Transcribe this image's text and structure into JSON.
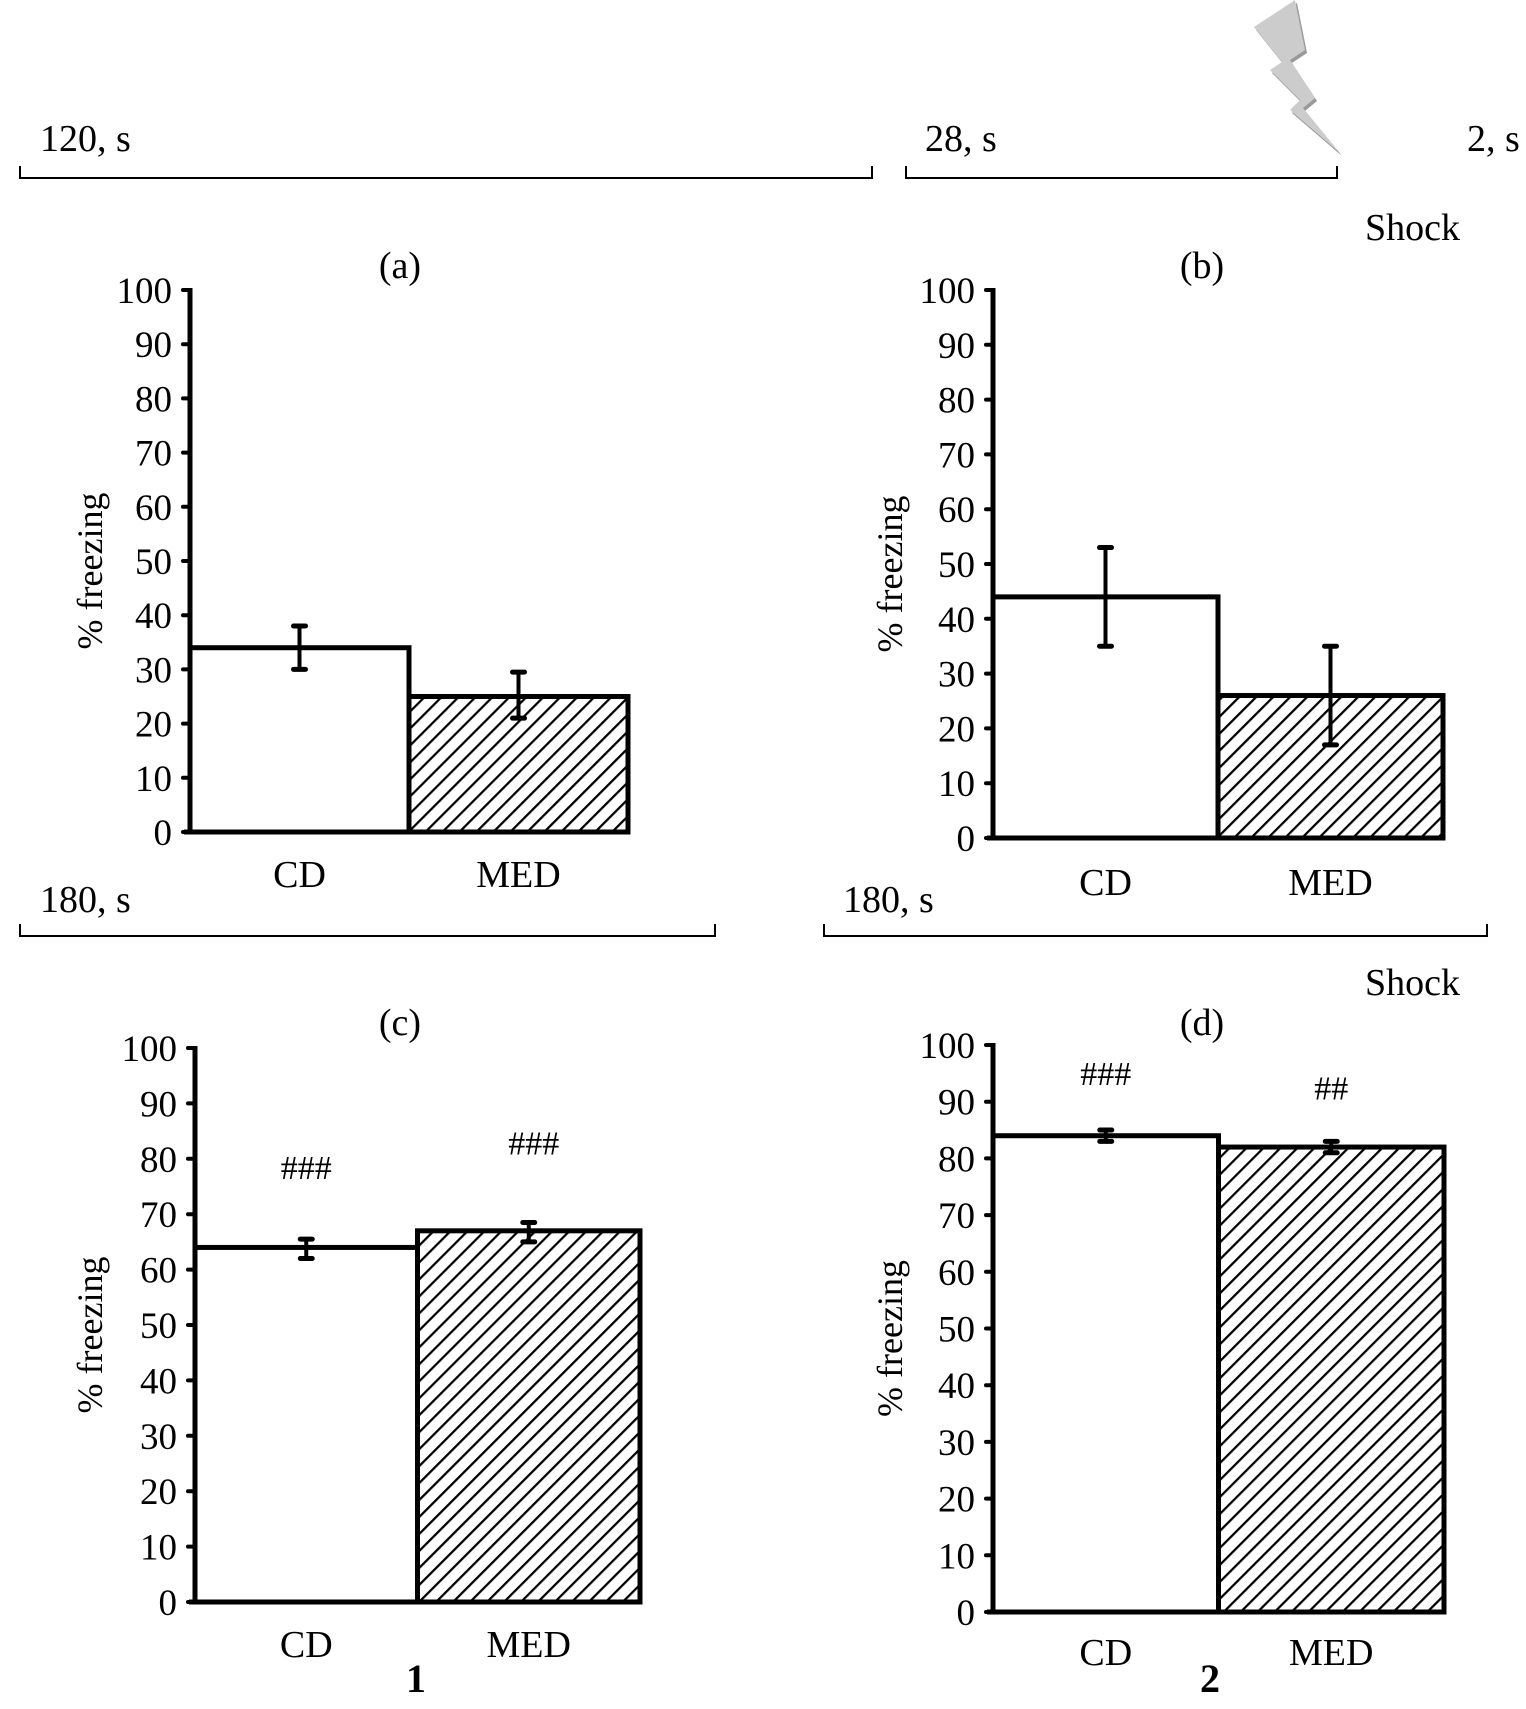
{
  "figure": {
    "timelines": [
      {
        "segments": [
          {
            "label": "120, s"
          },
          {
            "label": "28, s"
          },
          {
            "label": "2, s",
            "marker": "shock"
          }
        ],
        "shock_label": "Shock"
      },
      {
        "segments": [
          {
            "label": "180, s"
          }
        ]
      },
      {
        "segments": [
          {
            "label": "180, s"
          }
        ],
        "shock_label": "Shock"
      }
    ],
    "column_labels": [
      "1",
      "2"
    ],
    "icons": {
      "shock": "lightning-bolt-icon"
    },
    "colors": {
      "axis": "#000000",
      "bar_fill_cd": "#ffffff",
      "bar_fill_med": "hatched",
      "shock_icon": "#cccccc"
    }
  },
  "chart_data": [
    {
      "type": "bar",
      "title": "(a)",
      "categories": [
        "CD",
        "MED"
      ],
      "values": [
        34,
        25
      ],
      "error_low": [
        30,
        21
      ],
      "error_high": [
        38,
        29.5
      ],
      "significance": [
        "",
        ""
      ],
      "xlabel": "",
      "ylabel": "% freezing",
      "ylim": [
        0,
        100
      ],
      "yticks": [
        0,
        10,
        20,
        30,
        40,
        50,
        60,
        70,
        80,
        90,
        100
      ],
      "fills": [
        "white",
        "hatched"
      ],
      "grid": false
    },
    {
      "type": "bar",
      "title": "(b)",
      "categories": [
        "CD",
        "MED"
      ],
      "values": [
        44,
        26
      ],
      "error_low": [
        35,
        17
      ],
      "error_high": [
        53,
        35
      ],
      "significance": [
        "",
        ""
      ],
      "xlabel": "",
      "ylabel": "% freezing",
      "ylim": [
        0,
        100
      ],
      "yticks": [
        0,
        10,
        20,
        30,
        40,
        50,
        60,
        70,
        80,
        90,
        100
      ],
      "fills": [
        "white",
        "hatched"
      ],
      "grid": false
    },
    {
      "type": "bar",
      "title": "(c)",
      "categories": [
        "CD",
        "MED"
      ],
      "values": [
        64,
        67
      ],
      "error_low": [
        62,
        65
      ],
      "error_high": [
        65.5,
        68.5
      ],
      "significance": [
        "###",
        "###"
      ],
      "xlabel": "",
      "ylabel": "% freezing",
      "ylim": [
        0,
        100
      ],
      "yticks": [
        0,
        10,
        20,
        30,
        40,
        50,
        60,
        70,
        80,
        90,
        100
      ],
      "fills": [
        "white",
        "hatched"
      ],
      "grid": false
    },
    {
      "type": "bar",
      "title": "(d)",
      "categories": [
        "CD",
        "MED"
      ],
      "values": [
        84,
        82
      ],
      "error_low": [
        83,
        81
      ],
      "error_high": [
        85,
        83
      ],
      "significance": [
        "###",
        "##"
      ],
      "xlabel": "",
      "ylabel": "% freezing",
      "ylim": [
        0,
        100
      ],
      "yticks": [
        0,
        10,
        20,
        30,
        40,
        50,
        60,
        70,
        80,
        90,
        100
      ],
      "fills": [
        "white",
        "hatched"
      ],
      "grid": false
    }
  ]
}
